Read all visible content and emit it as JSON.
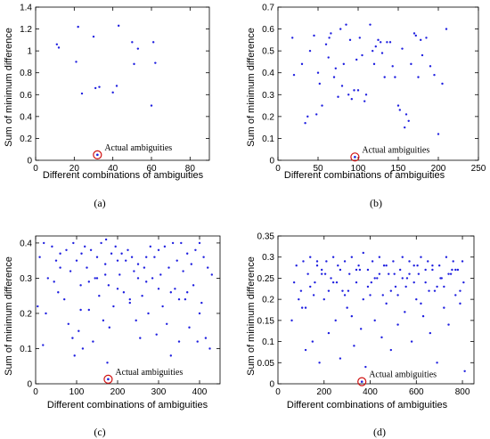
{
  "chart_data": [
    {
      "type": "scatter",
      "panel_label": "(a)",
      "xlabel": "Different combinations of ambiguities",
      "ylabel": "Sum of minimum difference",
      "xlim": [
        0,
        90
      ],
      "ylim": [
        0,
        1.4
      ],
      "xticks": [
        0,
        20,
        40,
        60,
        80
      ],
      "yticks": [
        0,
        0.2,
        0.4,
        0.6,
        0.8,
        1,
        1.2,
        1.4
      ],
      "ytick_labels": [
        "0",
        "0.2",
        "0.4",
        "0.6",
        "0.8",
        "1",
        "1.2",
        "1.4"
      ],
      "grid": false,
      "annotation": {
        "text": "Actual ambiguities",
        "x": 32,
        "y": 0.05
      },
      "series": [
        {
          "x": [
            11,
            12,
            21,
            22,
            24,
            30,
            31,
            33,
            40,
            42,
            43,
            50,
            51,
            53,
            60,
            61,
            62
          ],
          "y": [
            1.06,
            1.03,
            0.9,
            1.22,
            0.61,
            1.13,
            0.66,
            0.67,
            0.62,
            0.68,
            1.23,
            1.08,
            0.88,
            1.02,
            0.5,
            1.08,
            0.89
          ]
        }
      ]
    },
    {
      "type": "scatter",
      "panel_label": "(b)",
      "xlabel": "Different combinations of ambiguities",
      "ylabel": "Sum of minimum difference",
      "xlim": [
        0,
        250
      ],
      "ylim": [
        0,
        0.7
      ],
      "xticks": [
        0,
        50,
        100,
        150,
        200,
        250
      ],
      "yticks": [
        0,
        0.1,
        0.2,
        0.3,
        0.4,
        0.5,
        0.6,
        0.7
      ],
      "ytick_labels": [
        "0",
        "0.1",
        "0.2",
        "0.3",
        "0.4",
        "0.5",
        "0.6",
        "0.7"
      ],
      "grid": false,
      "annotation": {
        "text": "Actual ambiguities",
        "x": 96,
        "y": 0.015
      },
      "series": [
        {
          "x": [
            18,
            20,
            30,
            34,
            37,
            40,
            45,
            48,
            50,
            52,
            55,
            60,
            63,
            64,
            66,
            70,
            72,
            75,
            78,
            80,
            82,
            85,
            88,
            90,
            92,
            95,
            98,
            100,
            102,
            105,
            108,
            110,
            115,
            118,
            120,
            122,
            125,
            128,
            130,
            133,
            136,
            140,
            143,
            146,
            150,
            152,
            155,
            158,
            160,
            163,
            166,
            170,
            172,
            175,
            178,
            180,
            185,
            190,
            195,
            200,
            205,
            210
          ],
          "y": [
            0.56,
            0.39,
            0.44,
            0.17,
            0.2,
            0.5,
            0.57,
            0.21,
            0.4,
            0.35,
            0.25,
            0.53,
            0.47,
            0.56,
            0.58,
            0.38,
            0.42,
            0.29,
            0.6,
            0.34,
            0.44,
            0.62,
            0.3,
            0.55,
            0.28,
            0.32,
            0.46,
            0.32,
            0.56,
            0.48,
            0.27,
            0.3,
            0.62,
            0.5,
            0.44,
            0.52,
            0.55,
            0.54,
            0.49,
            0.38,
            0.54,
            0.54,
            0.43,
            0.38,
            0.25,
            0.23,
            0.51,
            0.15,
            0.21,
            0.18,
            0.44,
            0.58,
            0.57,
            0.38,
            0.55,
            0.48,
            0.56,
            0.43,
            0.39,
            0.12,
            0.35,
            0.6
          ]
        }
      ]
    },
    {
      "type": "scatter",
      "panel_label": "(c)",
      "xlabel": "Different combinations of ambiguities",
      "ylabel": "Sum of minimum difference",
      "xlim": [
        0,
        450
      ],
      "ylim": [
        0,
        0.42
      ],
      "xticks": [
        0,
        100,
        200,
        300,
        400
      ],
      "yticks": [
        0,
        0.1,
        0.2,
        0.3,
        0.4
      ],
      "ytick_labels": [
        "0",
        "0.1",
        "0.2",
        "0.3",
        "0.4"
      ],
      "grid": false,
      "annotation": {
        "text": "Actual ambiguities",
        "x": 177,
        "y": 0.013
      },
      "series": [
        {
          "x": [
            5,
            10,
            18,
            20,
            25,
            30,
            40,
            45,
            50,
            55,
            60,
            70,
            75,
            80,
            85,
            90,
            92,
            95,
            100,
            105,
            110,
            112,
            115,
            120,
            125,
            130,
            135,
            140,
            145,
            150,
            155,
            160,
            165,
            170,
            172,
            175,
            178,
            180,
            185,
            190,
            195,
            200,
            205,
            210,
            215,
            220,
            225,
            230,
            235,
            240,
            245,
            250,
            255,
            260,
            265,
            270,
            275,
            280,
            285,
            290,
            295,
            300,
            305,
            310,
            315,
            320,
            325,
            330,
            335,
            340,
            345,
            350,
            355,
            360,
            365,
            370,
            375,
            380,
            385,
            390,
            395,
            400,
            405,
            410,
            415,
            420,
            425,
            430,
            60,
            110,
            150,
            200,
            250,
            300,
            350,
            400,
            130,
            230,
            330,
            170,
            270,
            370
          ],
          "y": [
            0.22,
            0.36,
            0.11,
            0.4,
            0.2,
            0.3,
            0.39,
            0.29,
            0.35,
            0.26,
            0.37,
            0.24,
            0.38,
            0.17,
            0.32,
            0.13,
            0.4,
            0.08,
            0.35,
            0.15,
            0.28,
            0.37,
            0.1,
            0.39,
            0.33,
            0.21,
            0.38,
            0.12,
            0.3,
            0.36,
            0.25,
            0.4,
            0.18,
            0.34,
            0.41,
            0.06,
            0.28,
            0.16,
            0.37,
            0.22,
            0.39,
            0.35,
            0.31,
            0.37,
            0.26,
            0.35,
            0.38,
            0.24,
            0.36,
            0.32,
            0.18,
            0.34,
            0.13,
            0.25,
            0.33,
            0.36,
            0.2,
            0.39,
            0.3,
            0.36,
            0.14,
            0.38,
            0.31,
            0.22,
            0.39,
            0.17,
            0.33,
            0.08,
            0.4,
            0.27,
            0.35,
            0.12,
            0.4,
            0.32,
            0.24,
            0.37,
            0.16,
            0.34,
            0.28,
            0.38,
            0.12,
            0.4,
            0.23,
            0.36,
            0.13,
            0.33,
            0.1,
            0.31,
            0.33,
            0.21,
            0.3,
            0.27,
            0.3,
            0.27,
            0.24,
            0.2,
            0.29,
            0.23,
            0.26,
            0.31,
            0.29,
            0.26
          ]
        }
      ]
    },
    {
      "type": "scatter",
      "panel_label": "(d)",
      "xlabel": "Different combinations of ambiguities",
      "ylabel": "Sum of minimum difference",
      "xlim": [
        0,
        850
      ],
      "ylim": [
        0,
        0.35
      ],
      "xticks": [
        0,
        200,
        400,
        600,
        800
      ],
      "yticks": [
        0,
        0.05,
        0.1,
        0.15,
        0.2,
        0.25,
        0.3,
        0.35
      ],
      "ytick_labels": [
        "0",
        "0.05",
        "0.1",
        "0.15",
        "0.2",
        "0.25",
        "0.3",
        "0.35"
      ],
      "grid": false,
      "annotation": {
        "text": "Actual ambiguities",
        "x": 364,
        "y": 0.005
      },
      "series": [
        {
          "x": [
            60,
            80,
            100,
            110,
            120,
            130,
            140,
            150,
            160,
            170,
            180,
            190,
            200,
            210,
            220,
            230,
            240,
            250,
            260,
            270,
            280,
            290,
            300,
            310,
            320,
            330,
            340,
            350,
            360,
            370,
            380,
            390,
            400,
            410,
            420,
            430,
            440,
            450,
            460,
            470,
            480,
            490,
            500,
            510,
            520,
            530,
            540,
            550,
            560,
            570,
            580,
            590,
            600,
            610,
            620,
            630,
            640,
            650,
            660,
            670,
            680,
            690,
            700,
            710,
            720,
            730,
            740,
            750,
            760,
            770,
            780,
            790,
            800,
            810,
            90,
            140,
            190,
            240,
            290,
            340,
            390,
            440,
            490,
            540,
            590,
            640,
            690,
            740,
            790,
            70,
            120,
            170,
            220,
            270,
            320,
            370,
            420,
            470,
            520,
            570,
            620,
            670,
            720,
            770,
            105,
            155,
            205,
            255,
            305,
            355,
            405,
            455,
            505,
            555,
            605,
            655,
            705,
            755,
            805
          ],
          "y": [
            0.15,
            0.28,
            0.22,
            0.29,
            0.08,
            0.26,
            0.3,
            0.1,
            0.24,
            0.29,
            0.05,
            0.27,
            0.2,
            0.29,
            0.12,
            0.25,
            0.3,
            0.15,
            0.28,
            0.06,
            0.22,
            0.29,
            0.18,
            0.26,
            0.3,
            0.09,
            0.24,
            0.28,
            0.13,
            0.31,
            0.04,
            0.27,
            0.21,
            0.29,
            0.15,
            0.25,
            0.3,
            0.11,
            0.28,
            0.19,
            0.26,
            0.08,
            0.29,
            0.23,
            0.14,
            0.27,
            0.3,
            0.17,
            0.25,
            0.29,
            0.1,
            0.28,
            0.2,
            0.26,
            0.3,
            0.16,
            0.24,
            0.29,
            0.12,
            0.27,
            0.22,
            0.05,
            0.28,
            0.25,
            0.18,
            0.3,
            0.14,
            0.26,
            0.29,
            0.21,
            0.27,
            0.19,
            0.29,
            0.03,
            0.2,
            0.23,
            0.26,
            0.24,
            0.21,
            0.27,
            0.23,
            0.26,
            0.22,
            0.25,
            0.24,
            0.27,
            0.23,
            0.26,
            0.22,
            0.24,
            0.18,
            0.28,
            0.22,
            0.27,
            0.16,
            0.2,
            0.25,
            0.28,
            0.21,
            0.26,
            0.19,
            0.28,
            0.23,
            0.27,
            0.18,
            0.21,
            0.26,
            0.24,
            0.22,
            0.27,
            0.24,
            0.21,
            0.26,
            0.23,
            0.28,
            0.22,
            0.25,
            0.27,
            0.24
          ]
        }
      ]
    }
  ]
}
